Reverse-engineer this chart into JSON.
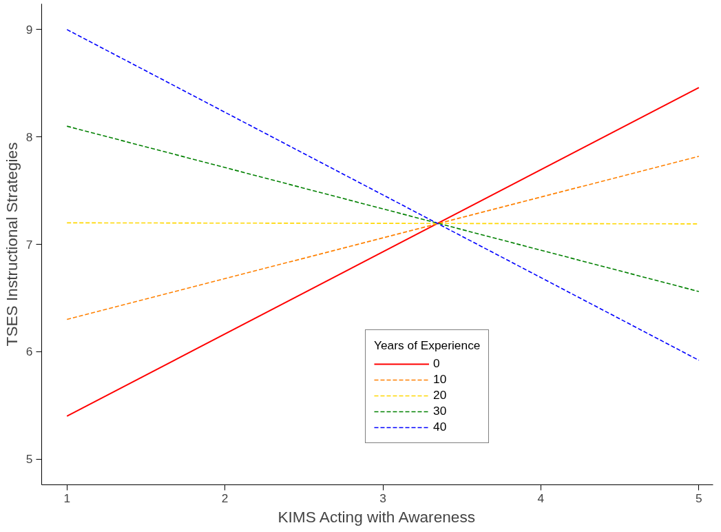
{
  "chart_data": {
    "type": "line",
    "xlabel": "KIMS Acting with Awareness",
    "ylabel": "TSES Instructional Strategies",
    "legend_title": "Years of Experience",
    "x": [
      1,
      5
    ],
    "xlim": [
      0.84,
      5.09
    ],
    "ylim": [
      4.76,
      9.24
    ],
    "xticks": [
      1,
      2,
      3,
      4,
      5
    ],
    "yticks": [
      5,
      6,
      7,
      8,
      9
    ],
    "grid": false,
    "legend": "bottom",
    "marker": "none",
    "series": [
      {
        "name": "0",
        "color": "#ff0000",
        "values": [
          5.4,
          8.46
        ],
        "line_style": "solid"
      },
      {
        "name": "10",
        "color": "#ff8000",
        "values": [
          6.3,
          7.82
        ],
        "line_style": "dashed"
      },
      {
        "name": "20",
        "color": "#ffd700",
        "values": [
          7.2,
          7.19
        ],
        "line_style": "dashed"
      },
      {
        "name": "30",
        "color": "#008000",
        "values": [
          8.1,
          6.56
        ],
        "line_style": "dashed"
      },
      {
        "name": "40",
        "color": "#0000ff",
        "values": [
          9.0,
          5.92
        ],
        "line_style": "dashed"
      }
    ]
  }
}
